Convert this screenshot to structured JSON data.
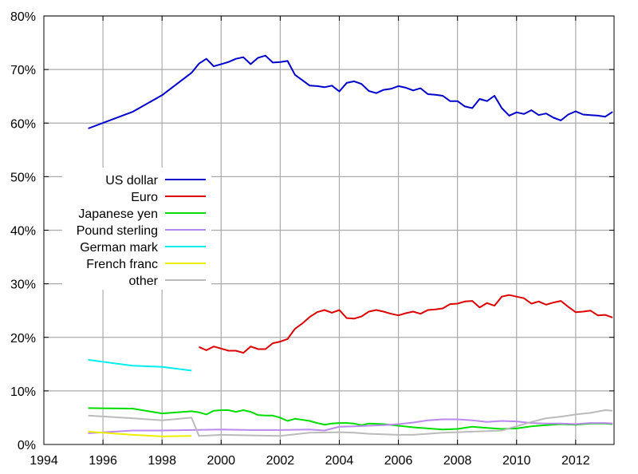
{
  "chart_data": {
    "type": "line",
    "title": "",
    "xlabel": "",
    "ylabel": "",
    "xlim": [
      1994,
      2013.3
    ],
    "ylim": [
      0,
      80
    ],
    "x_ticks": [
      1994,
      1996,
      1998,
      2000,
      2002,
      2004,
      2006,
      2008,
      2010,
      2012
    ],
    "x_tick_labels": [
      "1994",
      "1996",
      "1998",
      "2000",
      "2002",
      "2004",
      "2006",
      "2008",
      "2010",
      "2012"
    ],
    "y_ticks": [
      0,
      10,
      20,
      30,
      40,
      50,
      60,
      70,
      80
    ],
    "y_tick_labels": [
      "0%",
      "10%",
      "20%",
      "30%",
      "40%",
      "50%",
      "60%",
      "70%",
      "80%"
    ],
    "grid": true,
    "legend_position": "left-middle",
    "series": [
      {
        "name": "US dollar",
        "color": "#0000cc",
        "points": [
          [
            1995.5,
            59.0
          ],
          [
            1997,
            62.1
          ],
          [
            1998,
            65.2
          ],
          [
            1999,
            69.4
          ],
          [
            1999.25,
            71.1
          ],
          [
            1999.5,
            72.0
          ],
          [
            1999.75,
            70.6
          ],
          [
            2000,
            71.0
          ],
          [
            2000.25,
            71.4
          ],
          [
            2000.5,
            72.0
          ],
          [
            2000.75,
            72.3
          ],
          [
            2001,
            71.0
          ],
          [
            2001.25,
            72.2
          ],
          [
            2001.5,
            72.6
          ],
          [
            2001.75,
            71.3
          ],
          [
            2002,
            71.4
          ],
          [
            2002.25,
            71.6
          ],
          [
            2002.5,
            69.0
          ],
          [
            2002.75,
            68.0
          ],
          [
            2003,
            67.0
          ],
          [
            2003.25,
            66.9
          ],
          [
            2003.5,
            66.7
          ],
          [
            2003.75,
            67.0
          ],
          [
            2004,
            65.9
          ],
          [
            2004.25,
            67.5
          ],
          [
            2004.5,
            67.8
          ],
          [
            2004.75,
            67.3
          ],
          [
            2005,
            66.0
          ],
          [
            2005.25,
            65.6
          ],
          [
            2005.5,
            66.2
          ],
          [
            2005.75,
            66.4
          ],
          [
            2006,
            66.9
          ],
          [
            2006.25,
            66.6
          ],
          [
            2006.5,
            66.1
          ],
          [
            2006.75,
            66.5
          ],
          [
            2007,
            65.4
          ],
          [
            2007.25,
            65.3
          ],
          [
            2007.5,
            65.1
          ],
          [
            2007.75,
            64.1
          ],
          [
            2008,
            64.1
          ],
          [
            2008.25,
            63.1
          ],
          [
            2008.5,
            62.8
          ],
          [
            2008.75,
            64.5
          ],
          [
            2009,
            64.1
          ],
          [
            2009.25,
            65.1
          ],
          [
            2009.5,
            62.8
          ],
          [
            2009.75,
            61.4
          ],
          [
            2010,
            62.0
          ],
          [
            2010.25,
            61.7
          ],
          [
            2010.5,
            62.4
          ],
          [
            2010.75,
            61.5
          ],
          [
            2011,
            61.8
          ],
          [
            2011.25,
            61.0
          ],
          [
            2011.5,
            60.5
          ],
          [
            2011.75,
            61.6
          ],
          [
            2012,
            62.2
          ],
          [
            2012.25,
            61.6
          ],
          [
            2012.5,
            61.5
          ],
          [
            2012.75,
            61.4
          ],
          [
            2013,
            61.2
          ],
          [
            2013.25,
            62.1
          ]
        ]
      },
      {
        "name": "Euro",
        "color": "#dd0000",
        "points": [
          [
            1999.25,
            18.2
          ],
          [
            1999.5,
            17.6
          ],
          [
            1999.75,
            18.3
          ],
          [
            2000,
            17.9
          ],
          [
            2000.25,
            17.5
          ],
          [
            2000.5,
            17.5
          ],
          [
            2000.75,
            17.1
          ],
          [
            2001,
            18.3
          ],
          [
            2001.25,
            17.8
          ],
          [
            2001.5,
            17.8
          ],
          [
            2001.75,
            18.9
          ],
          [
            2002,
            19.2
          ],
          [
            2002.25,
            19.7
          ],
          [
            2002.5,
            21.6
          ],
          [
            2002.75,
            22.6
          ],
          [
            2003,
            23.8
          ],
          [
            2003.25,
            24.7
          ],
          [
            2003.5,
            25.1
          ],
          [
            2003.75,
            24.6
          ],
          [
            2004,
            25.1
          ],
          [
            2004.25,
            23.6
          ],
          [
            2004.5,
            23.5
          ],
          [
            2004.75,
            23.9
          ],
          [
            2005,
            24.8
          ],
          [
            2005.25,
            25.1
          ],
          [
            2005.5,
            24.8
          ],
          [
            2005.75,
            24.4
          ],
          [
            2006,
            24.1
          ],
          [
            2006.25,
            24.5
          ],
          [
            2006.5,
            24.8
          ],
          [
            2006.75,
            24.4
          ],
          [
            2007,
            25.1
          ],
          [
            2007.25,
            25.2
          ],
          [
            2007.5,
            25.4
          ],
          [
            2007.75,
            26.2
          ],
          [
            2008,
            26.3
          ],
          [
            2008.25,
            26.7
          ],
          [
            2008.5,
            26.8
          ],
          [
            2008.75,
            25.6
          ],
          [
            2009,
            26.4
          ],
          [
            2009.25,
            25.9
          ],
          [
            2009.5,
            27.6
          ],
          [
            2009.75,
            27.9
          ],
          [
            2010,
            27.6
          ],
          [
            2010.25,
            27.3
          ],
          [
            2010.5,
            26.3
          ],
          [
            2010.75,
            26.7
          ],
          [
            2011,
            26.1
          ],
          [
            2011.25,
            26.5
          ],
          [
            2011.5,
            26.8
          ],
          [
            2011.75,
            25.7
          ],
          [
            2012,
            24.7
          ],
          [
            2012.25,
            24.8
          ],
          [
            2012.5,
            25.0
          ],
          [
            2012.75,
            24.1
          ],
          [
            2013,
            24.2
          ],
          [
            2013.25,
            23.7
          ]
        ]
      },
      {
        "name": "Japanese yen",
        "color": "#00dd00",
        "points": [
          [
            1995.5,
            6.8
          ],
          [
            1997,
            6.7
          ],
          [
            1998,
            5.8
          ],
          [
            1999,
            6.2
          ],
          [
            1999.25,
            6.0
          ],
          [
            1999.5,
            5.6
          ],
          [
            1999.75,
            6.3
          ],
          [
            2000,
            6.4
          ],
          [
            2000.25,
            6.4
          ],
          [
            2000.5,
            6.1
          ],
          [
            2000.75,
            6.4
          ],
          [
            2001,
            6.1
          ],
          [
            2001.25,
            5.5
          ],
          [
            2001.5,
            5.4
          ],
          [
            2001.75,
            5.4
          ],
          [
            2002,
            5.0
          ],
          [
            2002.25,
            4.4
          ],
          [
            2002.5,
            4.8
          ],
          [
            2002.75,
            4.6
          ],
          [
            2003,
            4.4
          ],
          [
            2003.25,
            4.0
          ],
          [
            2003.5,
            3.7
          ],
          [
            2003.75,
            3.9
          ],
          [
            2004,
            4.0
          ],
          [
            2004.25,
            4.0
          ],
          [
            2004.5,
            3.9
          ],
          [
            2004.75,
            3.6
          ],
          [
            2005,
            3.9
          ],
          [
            2005.5,
            3.8
          ],
          [
            2006,
            3.5
          ],
          [
            2006.5,
            3.2
          ],
          [
            2007,
            3.0
          ],
          [
            2007.5,
            2.8
          ],
          [
            2008,
            2.9
          ],
          [
            2008.5,
            3.3
          ],
          [
            2009,
            3.1
          ],
          [
            2009.5,
            2.9
          ],
          [
            2010,
            3.0
          ],
          [
            2010.5,
            3.4
          ],
          [
            2011,
            3.6
          ],
          [
            2011.5,
            3.8
          ],
          [
            2012,
            3.7
          ],
          [
            2012.5,
            3.9
          ],
          [
            2013,
            3.9
          ],
          [
            2013.25,
            3.8
          ]
        ]
      },
      {
        "name": "Pound sterling",
        "color": "#bb88ee",
        "points": [
          [
            1995.5,
            2.1
          ],
          [
            1997,
            2.6
          ],
          [
            1998,
            2.6
          ],
          [
            1999,
            2.7
          ],
          [
            2000,
            2.8
          ],
          [
            2001,
            2.7
          ],
          [
            2002,
            2.7
          ],
          [
            2003,
            2.8
          ],
          [
            2003.5,
            2.6
          ],
          [
            2004,
            3.3
          ],
          [
            2004.5,
            3.4
          ],
          [
            2005,
            3.5
          ],
          [
            2005.5,
            3.6
          ],
          [
            2006,
            3.8
          ],
          [
            2006.5,
            4.1
          ],
          [
            2007,
            4.5
          ],
          [
            2007.5,
            4.7
          ],
          [
            2008,
            4.7
          ],
          [
            2008.5,
            4.5
          ],
          [
            2009,
            4.2
          ],
          [
            2009.5,
            4.4
          ],
          [
            2010,
            4.3
          ],
          [
            2010.5,
            4.0
          ],
          [
            2011,
            3.9
          ],
          [
            2011.5,
            3.9
          ],
          [
            2012,
            3.8
          ],
          [
            2012.5,
            4.0
          ],
          [
            2013,
            4.0
          ],
          [
            2013.25,
            3.9
          ]
        ]
      },
      {
        "name": "German mark",
        "color": "#00eeee",
        "points": [
          [
            1995.5,
            15.8
          ],
          [
            1997,
            14.7
          ],
          [
            1998,
            14.5
          ],
          [
            1999,
            13.8
          ]
        ]
      },
      {
        "name": "French franc",
        "color": "#eeee00",
        "points": [
          [
            1995.5,
            2.4
          ],
          [
            1997,
            1.8
          ],
          [
            1998,
            1.5
          ],
          [
            1999,
            1.6
          ]
        ]
      },
      {
        "name": "other",
        "color": "#bbbbbb",
        "points": [
          [
            1995.5,
            5.4
          ],
          [
            1997,
            4.9
          ],
          [
            1998,
            4.5
          ],
          [
            1999,
            5.0
          ],
          [
            1999.25,
            1.6
          ],
          [
            2000,
            1.8
          ],
          [
            2001,
            1.7
          ],
          [
            2002,
            1.6
          ],
          [
            2002.5,
            1.9
          ],
          [
            2003,
            2.2
          ],
          [
            2004,
            2.3
          ],
          [
            2004.5,
            2.2
          ],
          [
            2005,
            2.0
          ],
          [
            2005.5,
            1.9
          ],
          [
            2006,
            1.8
          ],
          [
            2006.5,
            1.8
          ],
          [
            2007,
            2.0
          ],
          [
            2007.5,
            2.2
          ],
          [
            2008,
            2.3
          ],
          [
            2008.5,
            2.4
          ],
          [
            2009,
            2.5
          ],
          [
            2009.5,
            2.6
          ],
          [
            2010,
            3.4
          ],
          [
            2010.5,
            4.2
          ],
          [
            2011,
            4.9
          ],
          [
            2011.5,
            5.2
          ],
          [
            2012,
            5.6
          ],
          [
            2012.5,
            5.9
          ],
          [
            2013,
            6.4
          ],
          [
            2013.25,
            6.3
          ]
        ]
      }
    ]
  }
}
